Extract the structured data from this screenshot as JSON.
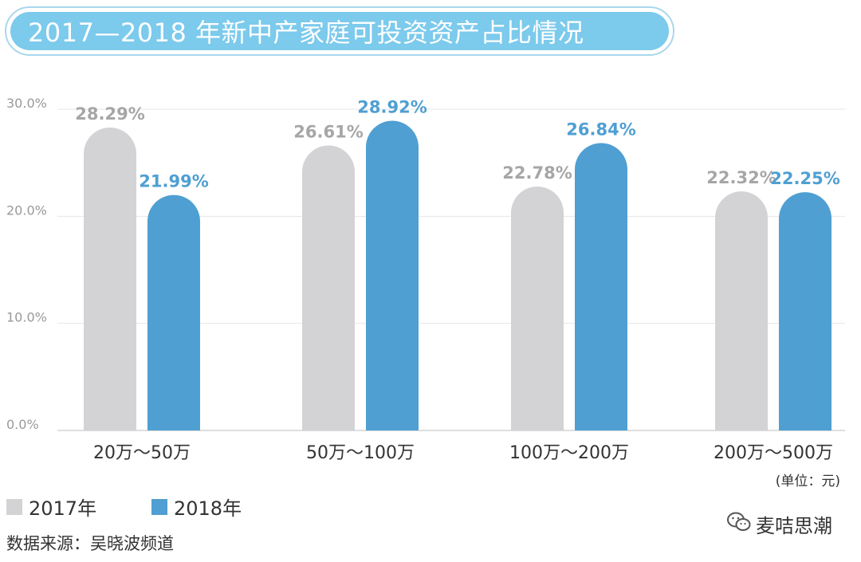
{
  "title": "2017—2018 年新中产家庭可投资资产占比情况",
  "chart_data": {
    "type": "bar",
    "categories": [
      "20万～50万",
      "50万～100万",
      "100万～200万",
      "200万～500万"
    ],
    "series": [
      {
        "name": "2017年",
        "values": [
          28.29,
          26.61,
          22.78,
          22.32
        ],
        "labels": [
          "28.29%",
          "26.61%",
          "22.78%",
          "22.32%"
        ],
        "color": "#d3d3d6",
        "label_color": "#a6a6a6"
      },
      {
        "name": "2018年",
        "values": [
          21.99,
          28.92,
          26.84,
          22.25
        ],
        "labels": [
          "21.99%",
          "28.92%",
          "26.84%",
          "22.25%"
        ],
        "color": "#4f9fd2",
        "label_color": "#4f9fd2"
      }
    ],
    "yticks": [
      "0.0%",
      "10.0%",
      "20.0%",
      "30.0%"
    ],
    "ylim": [
      0,
      30
    ],
    "grid": true,
    "legend_placement": "bottom-left"
  },
  "unit_note": "(单位：元)",
  "source": "数据来源：吴晓波频道",
  "watermark": "麦咭思潮"
}
